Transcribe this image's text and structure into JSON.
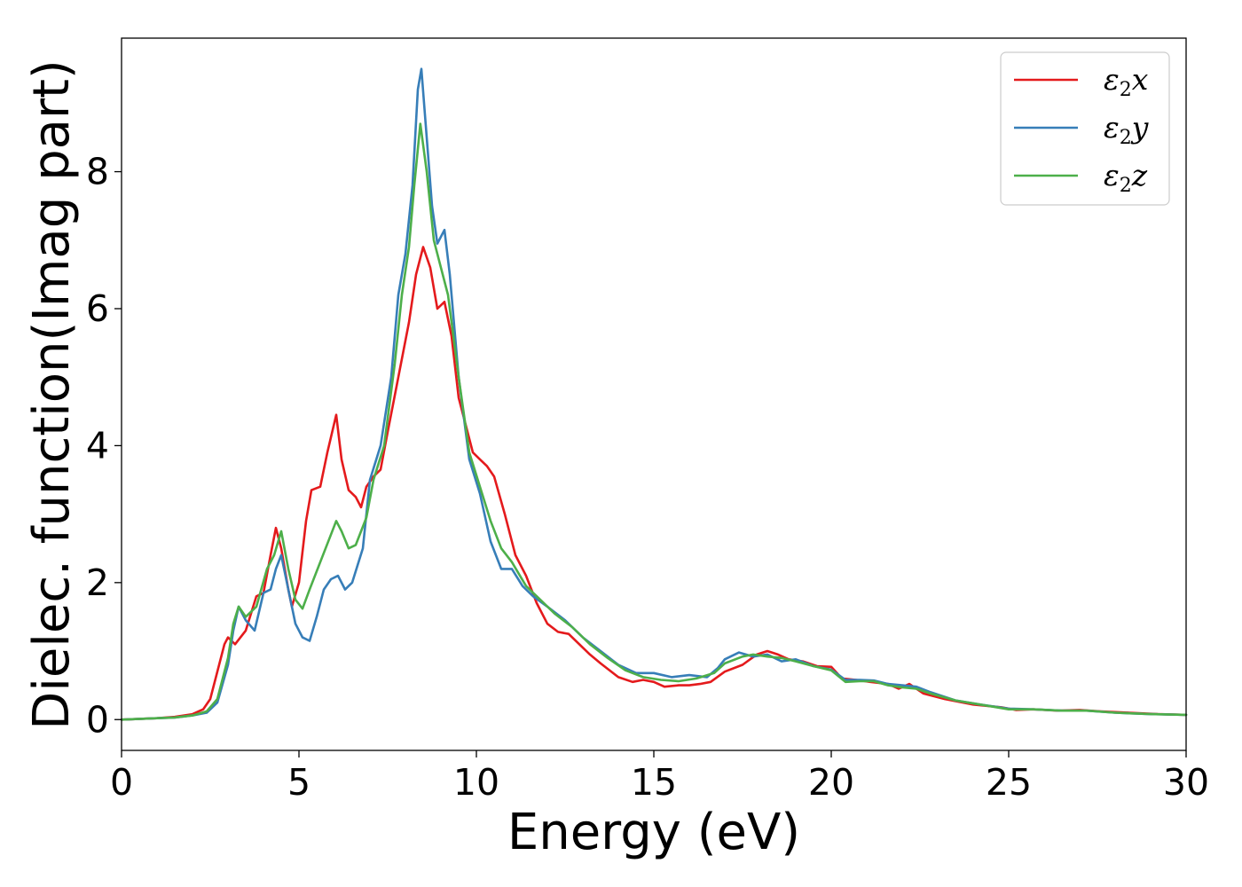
{
  "chart_data": {
    "type": "line",
    "title": "",
    "xlabel": "Energy (eV)",
    "ylabel": "Dielec. function(Imag part)",
    "xlim": [
      0,
      30
    ],
    "ylim": [
      -0.45,
      9.95
    ],
    "xticks": [
      0,
      5,
      10,
      15,
      20,
      25,
      30
    ],
    "yticks": [
      0,
      2,
      4,
      6,
      8
    ],
    "grid": false,
    "legend_position": "top-right",
    "series": [
      {
        "name": "ε2x",
        "legend_sym": "ε",
        "legend_sub": "2",
        "legend_var": "x",
        "color": "#e41a1c",
        "points": [
          [
            0,
            0
          ],
          [
            1,
            0.02
          ],
          [
            1.5,
            0.04
          ],
          [
            2,
            0.08
          ],
          [
            2.3,
            0.15
          ],
          [
            2.5,
            0.3
          ],
          [
            2.7,
            0.7
          ],
          [
            2.9,
            1.1
          ],
          [
            3.0,
            1.2
          ],
          [
            3.2,
            1.1
          ],
          [
            3.5,
            1.3
          ],
          [
            3.8,
            1.8
          ],
          [
            4.0,
            1.85
          ],
          [
            4.2,
            2.4
          ],
          [
            4.35,
            2.8
          ],
          [
            4.5,
            2.5
          ],
          [
            4.7,
            1.9
          ],
          [
            4.8,
            1.65
          ],
          [
            5.0,
            2.0
          ],
          [
            5.2,
            2.9
          ],
          [
            5.35,
            3.35
          ],
          [
            5.6,
            3.4
          ],
          [
            5.8,
            3.9
          ],
          [
            6.05,
            4.45
          ],
          [
            6.2,
            3.8
          ],
          [
            6.4,
            3.35
          ],
          [
            6.6,
            3.25
          ],
          [
            6.75,
            3.1
          ],
          [
            6.9,
            3.4
          ],
          [
            7.1,
            3.55
          ],
          [
            7.3,
            3.65
          ],
          [
            7.5,
            4.2
          ],
          [
            7.8,
            5.0
          ],
          [
            8.1,
            5.8
          ],
          [
            8.3,
            6.5
          ],
          [
            8.5,
            6.9
          ],
          [
            8.7,
            6.6
          ],
          [
            8.9,
            6.0
          ],
          [
            9.1,
            6.1
          ],
          [
            9.3,
            5.6
          ],
          [
            9.5,
            4.7
          ],
          [
            9.7,
            4.3
          ],
          [
            9.9,
            3.9
          ],
          [
            10.1,
            3.8
          ],
          [
            10.3,
            3.7
          ],
          [
            10.5,
            3.55
          ],
          [
            10.8,
            3.0
          ],
          [
            11.1,
            2.4
          ],
          [
            11.4,
            2.1
          ],
          [
            11.7,
            1.7
          ],
          [
            12.0,
            1.4
          ],
          [
            12.3,
            1.28
          ],
          [
            12.6,
            1.25
          ],
          [
            12.9,
            1.1
          ],
          [
            13.2,
            0.95
          ],
          [
            13.5,
            0.82
          ],
          [
            14.0,
            0.62
          ],
          [
            14.4,
            0.55
          ],
          [
            14.7,
            0.58
          ],
          [
            15.0,
            0.55
          ],
          [
            15.3,
            0.48
          ],
          [
            15.7,
            0.5
          ],
          [
            16.0,
            0.5
          ],
          [
            16.3,
            0.52
          ],
          [
            16.6,
            0.55
          ],
          [
            17.0,
            0.7
          ],
          [
            17.5,
            0.8
          ],
          [
            17.9,
            0.95
          ],
          [
            18.2,
            1.0
          ],
          [
            18.5,
            0.95
          ],
          [
            18.8,
            0.88
          ],
          [
            19.2,
            0.85
          ],
          [
            19.6,
            0.78
          ],
          [
            20.0,
            0.77
          ],
          [
            20.3,
            0.6
          ],
          [
            20.7,
            0.58
          ],
          [
            21.1,
            0.55
          ],
          [
            21.6,
            0.52
          ],
          [
            21.9,
            0.45
          ],
          [
            22.2,
            0.52
          ],
          [
            22.6,
            0.38
          ],
          [
            23.2,
            0.3
          ],
          [
            24.0,
            0.22
          ],
          [
            24.8,
            0.18
          ],
          [
            25.2,
            0.14
          ],
          [
            25.7,
            0.15
          ],
          [
            26.4,
            0.13
          ],
          [
            27.0,
            0.14
          ],
          [
            27.6,
            0.12
          ],
          [
            28.4,
            0.1
          ],
          [
            29.2,
            0.08
          ],
          [
            30,
            0.07
          ]
        ]
      },
      {
        "name": "ε2y",
        "legend_sym": "ε",
        "legend_sub": "2",
        "legend_var": "y",
        "color": "#377eb8",
        "points": [
          [
            0,
            0
          ],
          [
            1,
            0.02
          ],
          [
            1.5,
            0.03
          ],
          [
            2,
            0.06
          ],
          [
            2.4,
            0.1
          ],
          [
            2.7,
            0.25
          ],
          [
            3.0,
            0.8
          ],
          [
            3.15,
            1.3
          ],
          [
            3.3,
            1.65
          ],
          [
            3.5,
            1.45
          ],
          [
            3.75,
            1.3
          ],
          [
            4.0,
            1.85
          ],
          [
            4.2,
            1.9
          ],
          [
            4.35,
            2.2
          ],
          [
            4.5,
            2.4
          ],
          [
            4.7,
            1.9
          ],
          [
            4.9,
            1.4
          ],
          [
            5.1,
            1.2
          ],
          [
            5.3,
            1.15
          ],
          [
            5.5,
            1.5
          ],
          [
            5.7,
            1.9
          ],
          [
            5.9,
            2.05
          ],
          [
            6.1,
            2.1
          ],
          [
            6.3,
            1.9
          ],
          [
            6.5,
            2.0
          ],
          [
            6.8,
            2.5
          ],
          [
            7.0,
            3.5
          ],
          [
            7.3,
            4.0
          ],
          [
            7.6,
            5.0
          ],
          [
            7.8,
            6.2
          ],
          [
            8.0,
            6.8
          ],
          [
            8.2,
            7.8
          ],
          [
            8.35,
            9.2
          ],
          [
            8.45,
            9.5
          ],
          [
            8.6,
            8.5
          ],
          [
            8.75,
            7.5
          ],
          [
            8.9,
            6.95
          ],
          [
            9.1,
            7.15
          ],
          [
            9.25,
            6.5
          ],
          [
            9.5,
            5.0
          ],
          [
            9.8,
            3.8
          ],
          [
            10.1,
            3.3
          ],
          [
            10.4,
            2.6
          ],
          [
            10.7,
            2.2
          ],
          [
            11.0,
            2.2
          ],
          [
            11.3,
            1.95
          ],
          [
            11.6,
            1.8
          ],
          [
            12.0,
            1.65
          ],
          [
            12.5,
            1.45
          ],
          [
            13.0,
            1.2
          ],
          [
            13.5,
            1.0
          ],
          [
            14.0,
            0.8
          ],
          [
            14.5,
            0.68
          ],
          [
            15.0,
            0.68
          ],
          [
            15.5,
            0.62
          ],
          [
            16.0,
            0.65
          ],
          [
            16.5,
            0.62
          ],
          [
            16.8,
            0.75
          ],
          [
            17.0,
            0.88
          ],
          [
            17.4,
            0.98
          ],
          [
            17.8,
            0.92
          ],
          [
            18.2,
            0.95
          ],
          [
            18.6,
            0.85
          ],
          [
            19.0,
            0.88
          ],
          [
            19.5,
            0.78
          ],
          [
            20.0,
            0.73
          ],
          [
            20.4,
            0.58
          ],
          [
            20.8,
            0.58
          ],
          [
            21.2,
            0.57
          ],
          [
            21.6,
            0.52
          ],
          [
            22.0,
            0.5
          ],
          [
            22.4,
            0.48
          ],
          [
            22.8,
            0.4
          ],
          [
            23.5,
            0.28
          ],
          [
            24.2,
            0.22
          ],
          [
            25.0,
            0.16
          ],
          [
            25.7,
            0.15
          ],
          [
            26.5,
            0.13
          ],
          [
            27.2,
            0.13
          ],
          [
            28.0,
            0.1
          ],
          [
            29.0,
            0.08
          ],
          [
            30,
            0.07
          ]
        ]
      },
      {
        "name": "ε2z",
        "legend_sym": "ε",
        "legend_sub": "2",
        "legend_var": "z",
        "color": "#4daf4a",
        "points": [
          [
            0,
            0
          ],
          [
            1,
            0.02
          ],
          [
            1.5,
            0.03
          ],
          [
            2,
            0.06
          ],
          [
            2.4,
            0.12
          ],
          [
            2.7,
            0.3
          ],
          [
            3.0,
            0.9
          ],
          [
            3.15,
            1.4
          ],
          [
            3.3,
            1.65
          ],
          [
            3.5,
            1.5
          ],
          [
            3.8,
            1.65
          ],
          [
            4.1,
            2.2
          ],
          [
            4.3,
            2.4
          ],
          [
            4.5,
            2.75
          ],
          [
            4.7,
            2.2
          ],
          [
            4.9,
            1.75
          ],
          [
            5.1,
            1.62
          ],
          [
            5.3,
            1.9
          ],
          [
            5.6,
            2.3
          ],
          [
            5.9,
            2.7
          ],
          [
            6.05,
            2.9
          ],
          [
            6.2,
            2.75
          ],
          [
            6.4,
            2.5
          ],
          [
            6.6,
            2.55
          ],
          [
            6.9,
            2.95
          ],
          [
            7.1,
            3.5
          ],
          [
            7.4,
            4.0
          ],
          [
            7.7,
            5.2
          ],
          [
            7.9,
            6.2
          ],
          [
            8.1,
            6.9
          ],
          [
            8.25,
            7.8
          ],
          [
            8.42,
            8.7
          ],
          [
            8.6,
            8.0
          ],
          [
            8.8,
            7.0
          ],
          [
            9.0,
            6.6
          ],
          [
            9.2,
            6.2
          ],
          [
            9.5,
            5.0
          ],
          [
            9.8,
            3.9
          ],
          [
            10.1,
            3.4
          ],
          [
            10.4,
            2.9
          ],
          [
            10.7,
            2.5
          ],
          [
            11.0,
            2.3
          ],
          [
            11.4,
            1.95
          ],
          [
            11.8,
            1.75
          ],
          [
            12.2,
            1.55
          ],
          [
            12.7,
            1.35
          ],
          [
            13.2,
            1.1
          ],
          [
            13.7,
            0.9
          ],
          [
            14.2,
            0.72
          ],
          [
            14.7,
            0.62
          ],
          [
            15.2,
            0.58
          ],
          [
            15.7,
            0.56
          ],
          [
            16.2,
            0.6
          ],
          [
            16.7,
            0.68
          ],
          [
            17.0,
            0.82
          ],
          [
            17.5,
            0.92
          ],
          [
            17.8,
            0.95
          ],
          [
            18.2,
            0.92
          ],
          [
            18.6,
            0.9
          ],
          [
            19.0,
            0.85
          ],
          [
            19.5,
            0.78
          ],
          [
            20.0,
            0.72
          ],
          [
            20.4,
            0.55
          ],
          [
            20.8,
            0.56
          ],
          [
            21.2,
            0.56
          ],
          [
            21.6,
            0.5
          ],
          [
            22.0,
            0.47
          ],
          [
            22.4,
            0.45
          ],
          [
            22.8,
            0.38
          ],
          [
            23.5,
            0.28
          ],
          [
            24.2,
            0.22
          ],
          [
            25.0,
            0.15
          ],
          [
            25.7,
            0.15
          ],
          [
            26.5,
            0.13
          ],
          [
            27.2,
            0.13
          ],
          [
            28.0,
            0.1
          ],
          [
            29.0,
            0.08
          ],
          [
            30,
            0.07
          ]
        ]
      }
    ]
  }
}
